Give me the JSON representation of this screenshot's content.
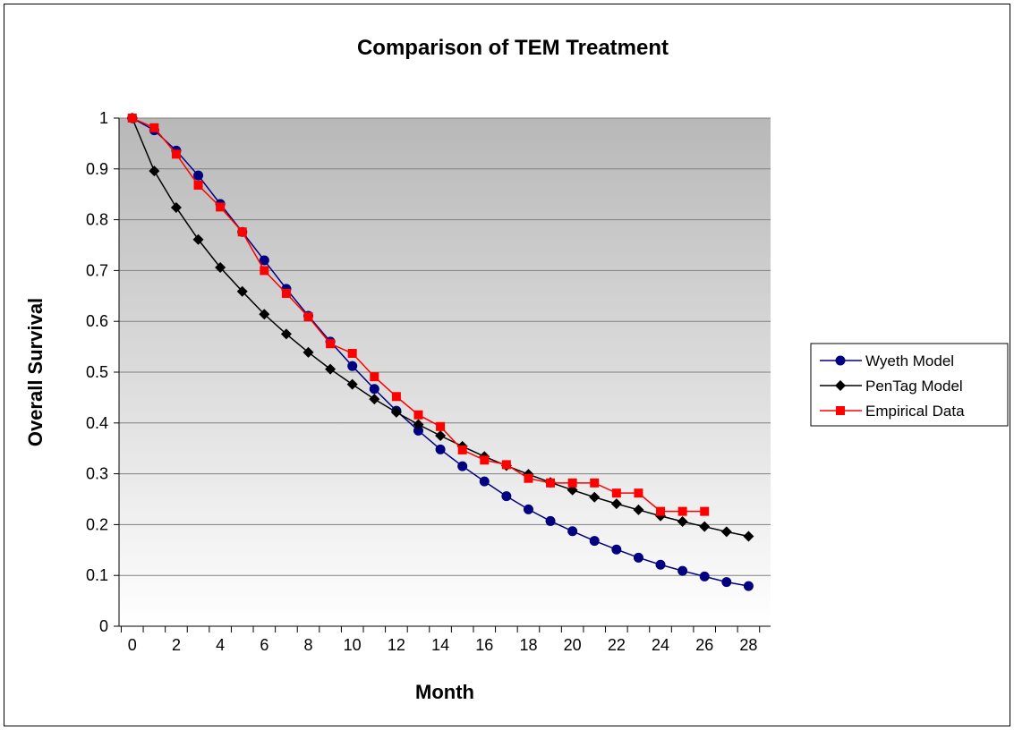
{
  "chart_data": {
    "type": "line",
    "title": "Comparison of TEM Treatment",
    "xlabel": "Month",
    "ylabel": "Overall Survival",
    "xlim": [
      -0.6,
      29
    ],
    "ylim": [
      0,
      1
    ],
    "x_ticks": [
      "0",
      "2",
      "4",
      "6",
      "8",
      "10",
      "12",
      "14",
      "16",
      "18",
      "20",
      "22",
      "24",
      "26",
      "28"
    ],
    "y_ticks": [
      "0",
      "0.1",
      "0.2",
      "0.3",
      "0.4",
      "0.5",
      "0.6",
      "0.7",
      "0.8",
      "0.9",
      "1"
    ],
    "grid": "horizontal",
    "legend_position": "right",
    "plot_background": "gradient gray to white",
    "series": [
      {
        "name": "Wyeth Model",
        "color": "#000080",
        "marker": "circle",
        "x": [
          0,
          1,
          2,
          3,
          4,
          5,
          6,
          7,
          8,
          9,
          10,
          11,
          12,
          13,
          14,
          15,
          16,
          17,
          18,
          19,
          20,
          21,
          22,
          23,
          24,
          25,
          26,
          27,
          28
        ],
        "y": [
          1.0,
          0.976,
          0.936,
          0.887,
          0.831,
          0.776,
          0.72,
          0.664,
          0.611,
          0.56,
          0.512,
          0.467,
          0.424,
          0.385,
          0.348,
          0.315,
          0.285,
          0.256,
          0.23,
          0.207,
          0.187,
          0.168,
          0.151,
          0.135,
          0.121,
          0.109,
          0.098,
          0.087,
          0.079
        ]
      },
      {
        "name": "PenTag Model",
        "color": "#000000",
        "marker": "diamond",
        "x": [
          0,
          1,
          2,
          3,
          4,
          5,
          6,
          7,
          8,
          9,
          10,
          11,
          12,
          13,
          14,
          15,
          16,
          17,
          18,
          19,
          20,
          21,
          22,
          23,
          24,
          25,
          26,
          27,
          28
        ],
        "y": [
          1.0,
          0.896,
          0.824,
          0.761,
          0.706,
          0.659,
          0.614,
          0.575,
          0.539,
          0.506,
          0.476,
          0.447,
          0.421,
          0.397,
          0.375,
          0.354,
          0.334,
          0.316,
          0.299,
          0.283,
          0.268,
          0.254,
          0.241,
          0.229,
          0.217,
          0.206,
          0.196,
          0.186,
          0.177
        ]
      },
      {
        "name": "Empirical Data",
        "color": "#ff0000",
        "marker": "square",
        "x": [
          0,
          1,
          2,
          3,
          4,
          5,
          6,
          7,
          8,
          9,
          10,
          11,
          12,
          13,
          14,
          15,
          16,
          17,
          18,
          19,
          20,
          21,
          22,
          23,
          24,
          25,
          26
        ],
        "y": [
          1.0,
          0.981,
          0.929,
          0.868,
          0.825,
          0.776,
          0.7,
          0.655,
          0.609,
          0.556,
          0.537,
          0.491,
          0.452,
          0.416,
          0.393,
          0.347,
          0.327,
          0.318,
          0.291,
          0.282,
          0.282,
          0.282,
          0.262,
          0.262,
          0.226,
          0.226,
          0.226
        ]
      }
    ]
  }
}
